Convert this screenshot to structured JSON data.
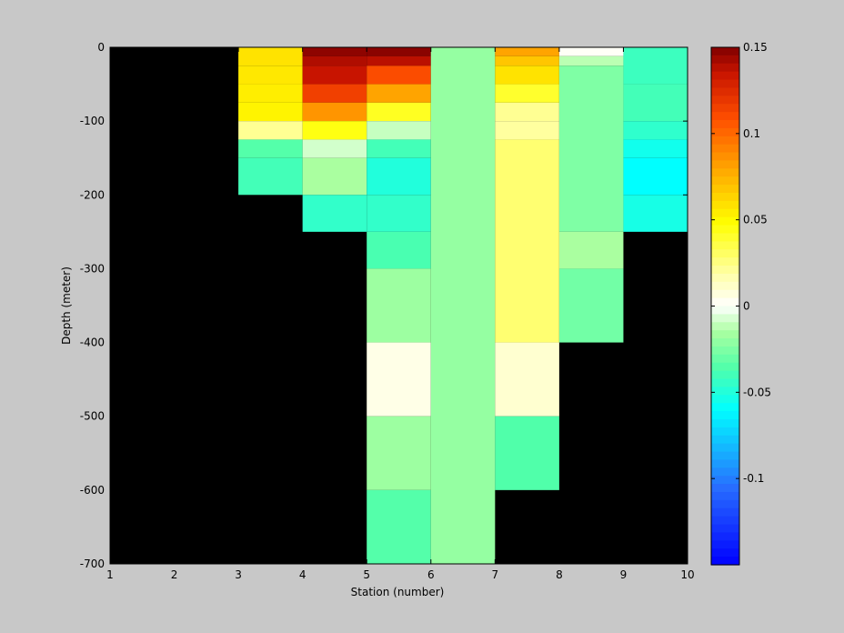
{
  "chart_data": {
    "type": "heatmap",
    "title": "",
    "xlabel": "Station (number)",
    "ylabel": "Depth (meter)",
    "xlim": [
      1,
      10
    ],
    "ylim": [
      -700,
      0
    ],
    "xticks": [
      1,
      2,
      3,
      4,
      5,
      6,
      7,
      8,
      9,
      10
    ],
    "yticks": [
      0,
      -100,
      -200,
      -300,
      -400,
      -500,
      -600,
      -700
    ],
    "background_color": "#000000",
    "colormap": "jet-centered-white",
    "clim": [
      -0.15,
      0.15
    ],
    "colorbar": {
      "position": "right",
      "ticks": [
        0.15,
        0.1,
        0.05,
        0,
        -0.05,
        -0.1
      ],
      "tick_labels": [
        "0.15",
        "0.1",
        "0.05",
        "0",
        "-0.05",
        "-0.1"
      ]
    },
    "columns": [
      {
        "x": [
          3,
          4
        ],
        "cells": [
          [
            0,
            -25,
            0.058
          ],
          [
            -25,
            -50,
            0.056
          ],
          [
            -50,
            -75,
            0.054
          ],
          [
            -75,
            -100,
            0.052
          ],
          [
            -100,
            -125,
            0.022
          ],
          [
            -125,
            -150,
            -0.035
          ],
          [
            -150,
            -200,
            -0.04
          ]
        ]
      },
      {
        "x": [
          4,
          5
        ],
        "cells": [
          [
            0,
            -12,
            0.147
          ],
          [
            -12,
            -25,
            0.14
          ],
          [
            -25,
            -50,
            0.135
          ],
          [
            -50,
            -75,
            0.115
          ],
          [
            -75,
            -100,
            0.085
          ],
          [
            -100,
            -125,
            0.045
          ],
          [
            -125,
            -150,
            -0.008
          ],
          [
            -150,
            -200,
            -0.015
          ],
          [
            -200,
            -250,
            -0.045
          ]
        ]
      },
      {
        "x": [
          5,
          6
        ],
        "cells": [
          [
            0,
            -12,
            0.148
          ],
          [
            -12,
            -25,
            0.138
          ],
          [
            -25,
            -50,
            0.11
          ],
          [
            -50,
            -75,
            0.08
          ],
          [
            -75,
            -100,
            0.042
          ],
          [
            -100,
            -125,
            -0.01
          ],
          [
            -125,
            -150,
            -0.04
          ],
          [
            -150,
            -200,
            -0.05
          ],
          [
            -200,
            -250,
            -0.045
          ],
          [
            -250,
            -300,
            -0.038
          ],
          [
            -300,
            -400,
            -0.018
          ],
          [
            -400,
            -500,
            0.005
          ],
          [
            -500,
            -600,
            -0.018
          ],
          [
            -600,
            -700,
            -0.035
          ]
        ]
      },
      {
        "x": [
          6,
          7
        ],
        "cells": [
          [
            0,
            -700,
            -0.02
          ]
        ]
      },
      {
        "x": [
          7,
          8
        ],
        "cells": [
          [
            0,
            -12,
            0.08
          ],
          [
            -12,
            -25,
            0.068
          ],
          [
            -25,
            -50,
            0.058
          ],
          [
            -50,
            -75,
            0.04
          ],
          [
            -75,
            -100,
            0.022
          ],
          [
            -100,
            -125,
            0.02
          ],
          [
            -125,
            -400,
            0.028
          ],
          [
            -400,
            -500,
            0.01
          ],
          [
            -500,
            -600,
            -0.036
          ]
        ]
      },
      {
        "x": [
          8,
          9
        ],
        "cells": [
          [
            0,
            -12,
            0.002
          ],
          [
            -12,
            -25,
            -0.012
          ],
          [
            -25,
            -250,
            -0.025
          ],
          [
            -250,
            -300,
            -0.015
          ],
          [
            -300,
            -400,
            -0.028
          ]
        ]
      },
      {
        "x": [
          9,
          10
        ],
        "cells": [
          [
            0,
            -50,
            -0.042
          ],
          [
            -50,
            -100,
            -0.04
          ],
          [
            -100,
            -125,
            -0.046
          ],
          [
            -125,
            -150,
            -0.055
          ],
          [
            -150,
            -200,
            -0.06
          ],
          [
            -200,
            -250,
            -0.053
          ]
        ]
      }
    ]
  }
}
